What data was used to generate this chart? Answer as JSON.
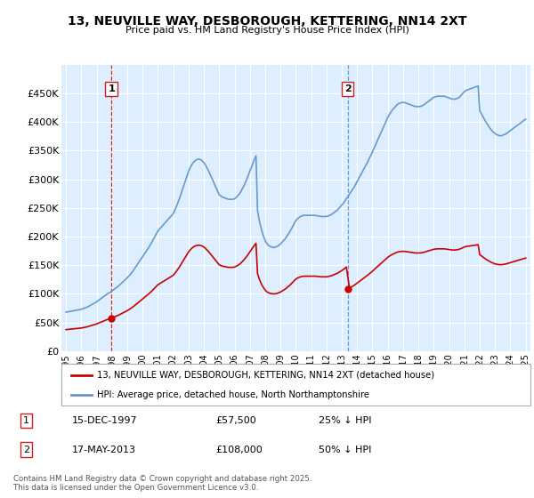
{
  "title": "13, NEUVILLE WAY, DESBOROUGH, KETTERING, NN14 2XT",
  "subtitle": "Price paid vs. HM Land Registry's House Price Index (HPI)",
  "background_color": "#ffffff",
  "plot_bg_color": "#ddeeff",
  "grid_color": "#ffffff",
  "ylim": [
    0,
    500000
  ],
  "yticks": [
    0,
    50000,
    100000,
    150000,
    200000,
    250000,
    300000,
    350000,
    400000,
    450000
  ],
  "ytick_labels": [
    "£0",
    "£50K",
    "£100K",
    "£150K",
    "£200K",
    "£250K",
    "£300K",
    "£350K",
    "£400K",
    "£450K"
  ],
  "xlim_start": 1994.7,
  "xlim_end": 2025.3,
  "xtick_years": [
    1995,
    1996,
    1997,
    1998,
    1999,
    2000,
    2001,
    2002,
    2003,
    2004,
    2005,
    2006,
    2007,
    2008,
    2009,
    2010,
    2011,
    2012,
    2013,
    2014,
    2015,
    2016,
    2017,
    2018,
    2019,
    2020,
    2021,
    2022,
    2023,
    2024,
    2025
  ],
  "sale1_x": 1997.96,
  "sale1_y": 57500,
  "sale1_label": "1",
  "sale1_date": "15-DEC-1997",
  "sale1_price": "£57,500",
  "sale1_hpi": "25% ↓ HPI",
  "sale1_vline_color": "#cc0000",
  "sale1_vline_style": "--",
  "sale2_x": 2013.38,
  "sale2_y": 108000,
  "sale2_label": "2",
  "sale2_date": "17-MAY-2013",
  "sale2_price": "£108,000",
  "sale2_hpi": "50% ↓ HPI",
  "sale2_vline_color": "#5588bb",
  "sale2_vline_style": "--",
  "sale_color": "#cc0000",
  "hpi_color": "#6699cc",
  "legend_label_sale": "13, NEUVILLE WAY, DESBOROUGH, KETTERING, NN14 2XT (detached house)",
  "legend_label_hpi": "HPI: Average price, detached house, North Northamptonshire",
  "footnote": "Contains HM Land Registry data © Crown copyright and database right 2025.\nThis data is licensed under the Open Government Licence v3.0.",
  "hpi_data_x": [
    1995.0,
    1995.1,
    1995.2,
    1995.3,
    1995.4,
    1995.5,
    1995.6,
    1995.7,
    1995.8,
    1995.9,
    1996.0,
    1996.1,
    1996.2,
    1996.3,
    1996.4,
    1996.5,
    1996.6,
    1996.7,
    1996.8,
    1996.9,
    1997.0,
    1997.1,
    1997.2,
    1997.3,
    1997.4,
    1997.5,
    1997.6,
    1997.7,
    1997.8,
    1997.9,
    1998.0,
    1998.1,
    1998.2,
    1998.3,
    1998.4,
    1998.5,
    1998.6,
    1998.7,
    1998.8,
    1998.9,
    1999.0,
    1999.1,
    1999.2,
    1999.3,
    1999.4,
    1999.5,
    1999.6,
    1999.7,
    1999.8,
    1999.9,
    2000.0,
    2000.1,
    2000.2,
    2000.3,
    2000.4,
    2000.5,
    2000.6,
    2000.7,
    2000.8,
    2000.9,
    2001.0,
    2001.1,
    2001.2,
    2001.3,
    2001.4,
    2001.5,
    2001.6,
    2001.7,
    2001.8,
    2001.9,
    2002.0,
    2002.1,
    2002.2,
    2002.3,
    2002.4,
    2002.5,
    2002.6,
    2002.7,
    2002.8,
    2002.9,
    2003.0,
    2003.1,
    2003.2,
    2003.3,
    2003.4,
    2003.5,
    2003.6,
    2003.7,
    2003.8,
    2003.9,
    2004.0,
    2004.1,
    2004.2,
    2004.3,
    2004.4,
    2004.5,
    2004.6,
    2004.7,
    2004.8,
    2004.9,
    2005.0,
    2005.1,
    2005.2,
    2005.3,
    2005.4,
    2005.5,
    2005.6,
    2005.7,
    2005.8,
    2005.9,
    2006.0,
    2006.1,
    2006.2,
    2006.3,
    2006.4,
    2006.5,
    2006.6,
    2006.7,
    2006.8,
    2006.9,
    2007.0,
    2007.1,
    2007.2,
    2007.3,
    2007.4,
    2007.5,
    2007.6,
    2007.7,
    2007.8,
    2007.9,
    2008.0,
    2008.1,
    2008.2,
    2008.3,
    2008.4,
    2008.5,
    2008.6,
    2008.7,
    2008.8,
    2008.9,
    2009.0,
    2009.1,
    2009.2,
    2009.3,
    2009.4,
    2009.5,
    2009.6,
    2009.7,
    2009.8,
    2009.9,
    2010.0,
    2010.1,
    2010.2,
    2010.3,
    2010.4,
    2010.5,
    2010.6,
    2010.7,
    2010.8,
    2010.9,
    2011.0,
    2011.1,
    2011.2,
    2011.3,
    2011.4,
    2011.5,
    2011.6,
    2011.7,
    2011.8,
    2011.9,
    2012.0,
    2012.1,
    2012.2,
    2012.3,
    2012.4,
    2012.5,
    2012.6,
    2012.7,
    2012.8,
    2012.9,
    2013.0,
    2013.1,
    2013.2,
    2013.3,
    2013.4,
    2013.5,
    2013.6,
    2013.7,
    2013.8,
    2013.9,
    2014.0,
    2014.1,
    2014.2,
    2014.3,
    2014.4,
    2014.5,
    2014.6,
    2014.7,
    2014.8,
    2014.9,
    2015.0,
    2015.1,
    2015.2,
    2015.3,
    2015.4,
    2015.5,
    2015.6,
    2015.7,
    2015.8,
    2015.9,
    2016.0,
    2016.1,
    2016.2,
    2016.3,
    2016.4,
    2016.5,
    2016.6,
    2016.7,
    2016.8,
    2016.9,
    2017.0,
    2017.1,
    2017.2,
    2017.3,
    2017.4,
    2017.5,
    2017.6,
    2017.7,
    2017.8,
    2017.9,
    2018.0,
    2018.1,
    2018.2,
    2018.3,
    2018.4,
    2018.5,
    2018.6,
    2018.7,
    2018.8,
    2018.9,
    2019.0,
    2019.1,
    2019.2,
    2019.3,
    2019.4,
    2019.5,
    2019.6,
    2019.7,
    2019.8,
    2019.9,
    2020.0,
    2020.1,
    2020.2,
    2020.3,
    2020.4,
    2020.5,
    2020.6,
    2020.7,
    2020.8,
    2020.9,
    2021.0,
    2021.1,
    2021.2,
    2021.3,
    2021.4,
    2021.5,
    2021.6,
    2021.7,
    2021.8,
    2021.9,
    2022.0,
    2022.1,
    2022.2,
    2022.3,
    2022.4,
    2022.5,
    2022.6,
    2022.7,
    2022.8,
    2022.9,
    2023.0,
    2023.1,
    2023.2,
    2023.3,
    2023.4,
    2023.5,
    2023.6,
    2023.7,
    2023.8,
    2023.9,
    2024.0,
    2024.1,
    2024.2,
    2024.3,
    2024.4,
    2024.5,
    2024.6,
    2024.7,
    2024.8,
    2024.9,
    2025.0
  ],
  "hpi_data_y": [
    68000,
    68500,
    69000,
    69500,
    70000,
    70500,
    71000,
    71500,
    72000,
    72500,
    73000,
    74000,
    75000,
    76000,
    77000,
    78500,
    80000,
    81500,
    83000,
    84500,
    86000,
    88000,
    90000,
    92000,
    94000,
    96000,
    98000,
    100000,
    101500,
    103000,
    105000,
    107000,
    109000,
    111000,
    113000,
    115500,
    118000,
    120500,
    123000,
    125500,
    128000,
    131000,
    134000,
    137500,
    141000,
    145000,
    149000,
    153000,
    157000,
    161000,
    165000,
    169000,
    173000,
    177000,
    181000,
    185500,
    190000,
    195000,
    200000,
    205000,
    210000,
    213000,
    216000,
    219000,
    222000,
    225000,
    228000,
    231000,
    234000,
    237000,
    240000,
    246000,
    252000,
    259000,
    266000,
    274000,
    282000,
    290000,
    298000,
    306000,
    314000,
    320000,
    325000,
    329000,
    332000,
    334000,
    335000,
    335000,
    334000,
    332000,
    329000,
    325000,
    320000,
    315000,
    309000,
    303000,
    297000,
    291000,
    285000,
    279000,
    273000,
    271000,
    269000,
    268000,
    267000,
    266000,
    265000,
    265000,
    265000,
    265000,
    266000,
    268000,
    271000,
    274000,
    278000,
    283000,
    288000,
    294000,
    300000,
    307000,
    314000,
    321000,
    328000,
    335000,
    341000,
    245000,
    230000,
    218000,
    208000,
    200000,
    193000,
    188000,
    185000,
    183000,
    182000,
    181000,
    181000,
    182000,
    183000,
    185000,
    187000,
    190000,
    193000,
    196000,
    200000,
    204000,
    208000,
    213000,
    218000,
    223000,
    228000,
    231000,
    233000,
    235000,
    236000,
    237000,
    237000,
    237000,
    237000,
    237000,
    237000,
    237000,
    237000,
    237000,
    236000,
    236000,
    235000,
    235000,
    235000,
    235000,
    235000,
    236000,
    237000,
    238000,
    240000,
    242000,
    244000,
    246000,
    249000,
    252000,
    255000,
    258000,
    262000,
    266000,
    270000,
    274000,
    278000,
    282000,
    286000,
    291000,
    296000,
    301000,
    306000,
    311000,
    316000,
    321000,
    326000,
    331000,
    337000,
    342000,
    348000,
    354000,
    360000,
    366000,
    372000,
    378000,
    384000,
    390000,
    396000,
    402000,
    408000,
    413000,
    417000,
    421000,
    424000,
    427000,
    430000,
    432000,
    433000,
    434000,
    434000,
    434000,
    433000,
    432000,
    431000,
    430000,
    429000,
    428000,
    427000,
    427000,
    427000,
    427000,
    428000,
    429000,
    431000,
    433000,
    435000,
    437000,
    439000,
    441000,
    443000,
    444000,
    445000,
    445000,
    445000,
    445000,
    445000,
    445000,
    444000,
    443000,
    442000,
    441000,
    440000,
    440000,
    440000,
    441000,
    442000,
    444000,
    447000,
    450000,
    453000,
    455000,
    456000,
    457000,
    458000,
    459000,
    460000,
    461000,
    462000,
    463000,
    420000,
    415000,
    410000,
    405000,
    400000,
    396000,
    392000,
    388000,
    385000,
    382000,
    380000,
    378000,
    377000,
    376000,
    376000,
    377000,
    378000,
    379000,
    381000,
    383000,
    385000,
    387000,
    389000,
    391000,
    393000,
    395000,
    397000,
    399000,
    401000,
    403000,
    405000
  ]
}
